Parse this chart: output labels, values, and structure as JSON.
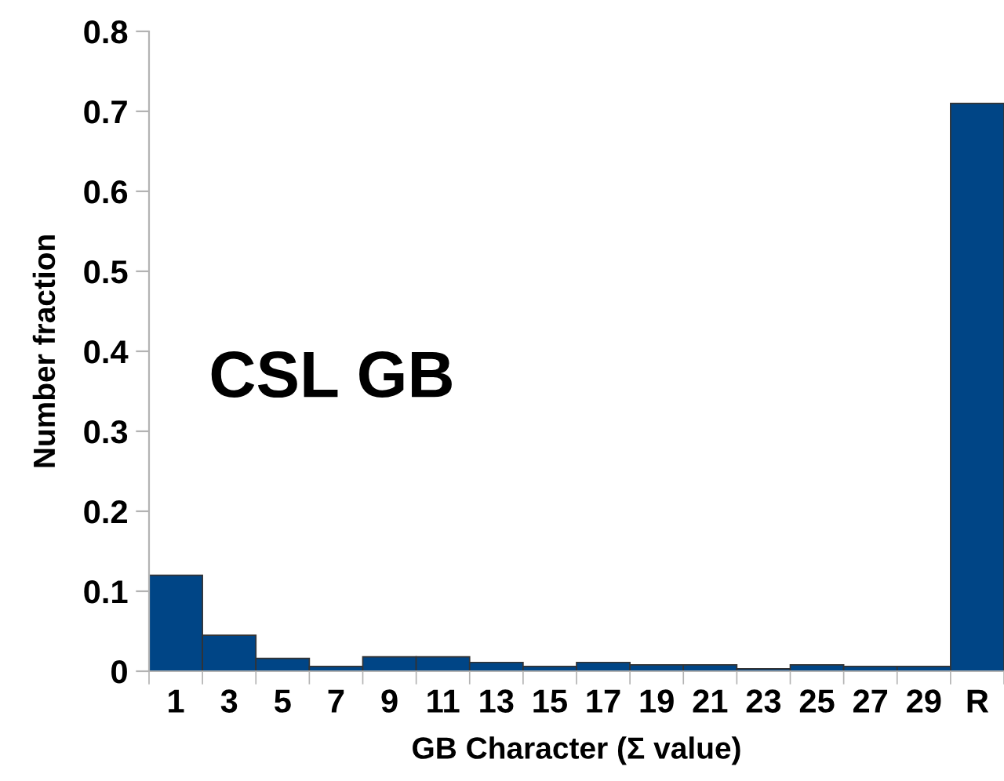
{
  "chart_data": {
    "type": "bar",
    "xlabel": "GB Character (Σ value)",
    "ylabel": "Number fraction",
    "categories": [
      "1",
      "3",
      "5",
      "7",
      "9",
      "11",
      "13",
      "15",
      "17",
      "19",
      "21",
      "23",
      "25",
      "27",
      "29",
      "R"
    ],
    "values": [
      0.12,
      0.045,
      0.016,
      0.006,
      0.018,
      0.018,
      0.011,
      0.006,
      0.011,
      0.008,
      0.008,
      0.003,
      0.008,
      0.006,
      0.006,
      0.71
    ],
    "color": "#004586",
    "ylim": [
      0,
      0.8
    ],
    "yticks": [
      0,
      0.1,
      0.2,
      0.3,
      0.4,
      0.5,
      0.6,
      0.7,
      0.8
    ],
    "annotations": [
      "CSL GB"
    ],
    "grid": false,
    "legend": false
  }
}
